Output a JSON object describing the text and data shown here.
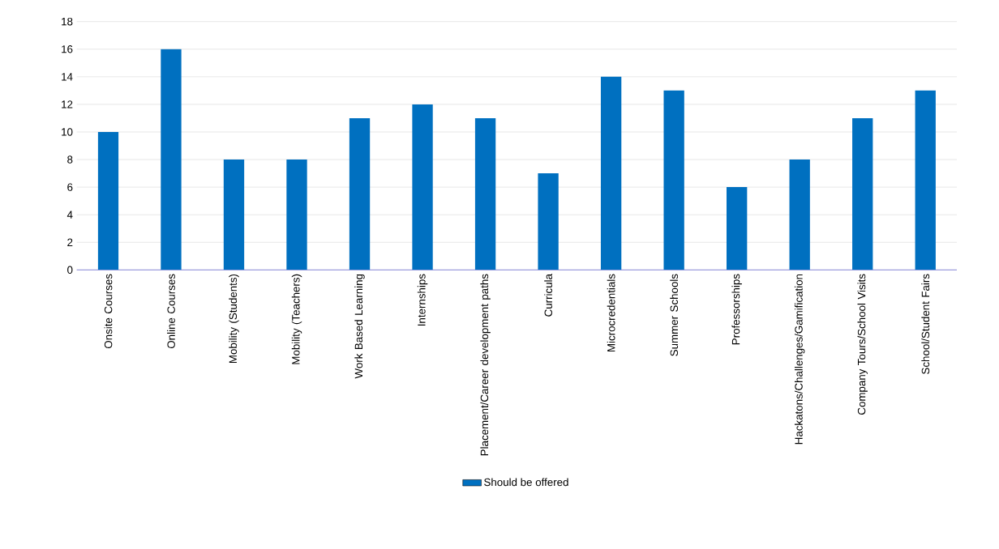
{
  "chart_data": {
    "type": "bar",
    "categories": [
      "Onsite Courses",
      "Online Courses",
      "Mobility (Students)",
      "Mobility (Teachers)",
      "Work Based Learning",
      "Internships",
      "Placement/Career development paths",
      "Curricula",
      "Microcredentials",
      "Summer Schools",
      "Professorships",
      "Hackatons/Challenges/Gamification",
      "Company Tours/School Visits",
      "School/Student Fairs"
    ],
    "series": [
      {
        "name": "Should be offered",
        "color": "#0070c0",
        "values": [
          10,
          16,
          8,
          8,
          11,
          12,
          11,
          7,
          14,
          13,
          6,
          8,
          11,
          13
        ]
      }
    ],
    "ylim": [
      0,
      18
    ],
    "yticks": [
      0,
      2,
      4,
      6,
      8,
      10,
      12,
      14,
      16,
      18
    ],
    "grid": "y",
    "legend": "bottom"
  }
}
